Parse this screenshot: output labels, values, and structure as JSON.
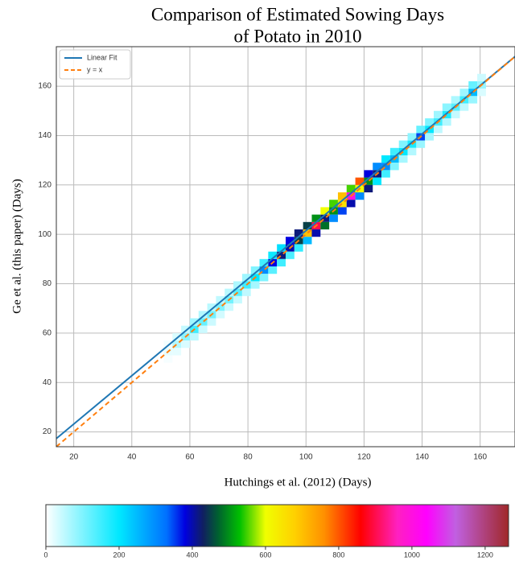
{
  "chart_data": {
    "type": "hist2d",
    "title": [
      "Comparison of Estimated Sowing Days",
      "of Potato in 2010"
    ],
    "xlabel": "Hutchings et al. (2012) (Days)",
    "ylabel": "Ge et al. (this paper) (Days)",
    "xlim": [
      14,
      172
    ],
    "ylim": [
      14,
      176
    ],
    "xticks": [
      20,
      40,
      60,
      80,
      100,
      120,
      140,
      160
    ],
    "yticks": [
      20,
      40,
      60,
      80,
      100,
      120,
      140,
      160
    ],
    "grid": true,
    "legend": "upper left",
    "bin_size": 3,
    "cells": [
      [
        51,
        51,
        20
      ],
      [
        51,
        54,
        10
      ],
      [
        51,
        48,
        7
      ],
      [
        54,
        54,
        60
      ],
      [
        54,
        57,
        30
      ],
      [
        54,
        51,
        20
      ],
      [
        57,
        57,
        90
      ],
      [
        57,
        60,
        45
      ],
      [
        57,
        54,
        30
      ],
      [
        60,
        60,
        150
      ],
      [
        60,
        63,
        75
      ],
      [
        60,
        57,
        50
      ],
      [
        63,
        63,
        120
      ],
      [
        63,
        66,
        60
      ],
      [
        63,
        60,
        40
      ],
      [
        66,
        66,
        110
      ],
      [
        66,
        69,
        55
      ],
      [
        66,
        63,
        40
      ],
      [
        69,
        69,
        100
      ],
      [
        69,
        72,
        50
      ],
      [
        69,
        66,
        35
      ],
      [
        72,
        72,
        110
      ],
      [
        72,
        75,
        55
      ],
      [
        72,
        69,
        40
      ],
      [
        75,
        75,
        130
      ],
      [
        75,
        78,
        65
      ],
      [
        75,
        72,
        45
      ],
      [
        78,
        78,
        150
      ],
      [
        78,
        81,
        75
      ],
      [
        78,
        75,
        50
      ],
      [
        81,
        81,
        200
      ],
      [
        81,
        84,
        100
      ],
      [
        81,
        78,
        70
      ],
      [
        84,
        84,
        300
      ],
      [
        84,
        87,
        150
      ],
      [
        84,
        81,
        100
      ],
      [
        87,
        87,
        380
      ],
      [
        87,
        90,
        190
      ],
      [
        87,
        84,
        130
      ],
      [
        90,
        90,
        420
      ],
      [
        90,
        93,
        210
      ],
      [
        90,
        87,
        150
      ],
      [
        93,
        93,
        400
      ],
      [
        93,
        96,
        380
      ],
      [
        93,
        90,
        140
      ],
      [
        96,
        96,
        450
      ],
      [
        96,
        99,
        420
      ],
      [
        96,
        93,
        160
      ],
      [
        99,
        99,
        700
      ],
      [
        99,
        102,
        450
      ],
      [
        99,
        96,
        250
      ],
      [
        102,
        102,
        900
      ],
      [
        102,
        105,
        500
      ],
      [
        102,
        99,
        400
      ],
      [
        105,
        105,
        420
      ],
      [
        105,
        108,
        600
      ],
      [
        105,
        102,
        480
      ],
      [
        108,
        108,
        500
      ],
      [
        108,
        111,
        550
      ],
      [
        108,
        105,
        300
      ],
      [
        111,
        111,
        650
      ],
      [
        111,
        114,
        700
      ],
      [
        111,
        108,
        350
      ],
      [
        114,
        114,
        1000
      ],
      [
        114,
        117,
        550
      ],
      [
        114,
        111,
        400
      ],
      [
        117,
        117,
        600
      ],
      [
        117,
        120,
        800
      ],
      [
        117,
        114,
        300
      ],
      [
        120,
        120,
        500
      ],
      [
        120,
        123,
        380
      ],
      [
        120,
        117,
        420
      ],
      [
        123,
        123,
        420
      ],
      [
        123,
        126,
        300
      ],
      [
        123,
        120,
        200
      ],
      [
        126,
        126,
        300
      ],
      [
        126,
        129,
        200
      ],
      [
        126,
        123,
        150
      ],
      [
        129,
        129,
        250
      ],
      [
        129,
        132,
        150
      ],
      [
        129,
        126,
        100
      ],
      [
        132,
        132,
        200
      ],
      [
        132,
        135,
        100
      ],
      [
        132,
        129,
        70
      ],
      [
        135,
        135,
        180
      ],
      [
        135,
        138,
        90
      ],
      [
        135,
        132,
        60
      ],
      [
        138,
        138,
        350
      ],
      [
        138,
        141,
        120
      ],
      [
        138,
        135,
        80
      ],
      [
        141,
        141,
        200
      ],
      [
        141,
        144,
        100
      ],
      [
        141,
        138,
        70
      ],
      [
        144,
        144,
        150
      ],
      [
        144,
        147,
        75
      ],
      [
        144,
        141,
        50
      ],
      [
        147,
        147,
        180
      ],
      [
        147,
        150,
        90
      ],
      [
        147,
        144,
        60
      ],
      [
        150,
        150,
        130
      ],
      [
        150,
        153,
        65
      ],
      [
        150,
        147,
        45
      ],
      [
        153,
        153,
        150
      ],
      [
        153,
        156,
        75
      ],
      [
        153,
        150,
        50
      ],
      [
        156,
        156,
        250
      ],
      [
        156,
        159,
        120
      ],
      [
        156,
        153,
        80
      ],
      [
        159,
        159,
        80
      ],
      [
        159,
        162,
        40
      ],
      [
        159,
        156,
        30
      ]
    ],
    "series": [
      {
        "name": "Linear Fit",
        "color": "#1f77b4",
        "dash": false,
        "x": [
          14,
          172
        ],
        "values": [
          17.3,
          172
        ]
      },
      {
        "name": "y = x",
        "color": "#ff7f0e",
        "dash": true,
        "x": [
          14,
          172
        ],
        "values": [
          14,
          172
        ]
      }
    ],
    "colormap": [
      {
        "value": 0,
        "color": "#ffffff"
      },
      {
        "value": 200,
        "color": "#00e8ff"
      },
      {
        "value": 330,
        "color": "#0070ff"
      },
      {
        "value": 380,
        "color": "#0000e0"
      },
      {
        "value": 430,
        "color": "#102060"
      },
      {
        "value": 470,
        "color": "#006030"
      },
      {
        "value": 530,
        "color": "#00c000"
      },
      {
        "value": 600,
        "color": "#f0ff00"
      },
      {
        "value": 680,
        "color": "#ffd000"
      },
      {
        "value": 760,
        "color": "#ff9000"
      },
      {
        "value": 860,
        "color": "#ff0000"
      },
      {
        "value": 960,
        "color": "#ff20c0"
      },
      {
        "value": 1040,
        "color": "#ff00ff"
      },
      {
        "value": 1120,
        "color": "#c060e0"
      },
      {
        "value": 1264,
        "color": "#a02828"
      }
    ],
    "colorbar": {
      "lim": [
        0,
        1264
      ],
      "ticks": [
        0,
        200,
        400,
        600,
        800,
        1000,
        1200
      ]
    }
  }
}
